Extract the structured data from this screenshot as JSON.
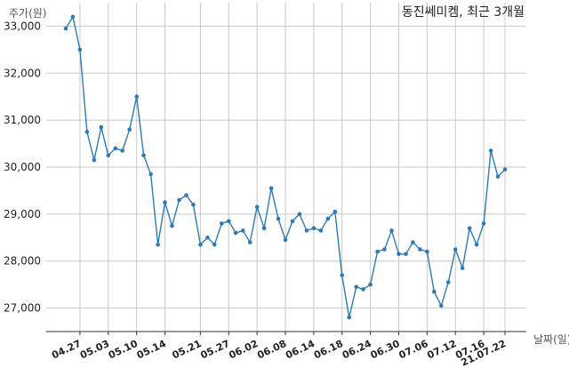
{
  "chart_data": {
    "type": "line",
    "title": "동진쎄미켐, 최근 3개월",
    "ylabel": "주가(원)",
    "xlabel": "날짜(일)",
    "ylim": [
      26500,
      33500
    ],
    "yticks": [
      27000,
      28000,
      29000,
      30000,
      31000,
      32000,
      33000
    ],
    "xtick_labels": [
      "04.27",
      "05.03",
      "05.10",
      "05.14",
      "05.21",
      "05.27",
      "06.02",
      "06.08",
      "06.14",
      "06.18",
      "06.24",
      "06.30",
      "07.06",
      "07.12",
      "07.16",
      "21.07.22"
    ],
    "grid": true,
    "legend": "none",
    "line_color": "#2e7bb4",
    "series": [
      {
        "values": [
          32950,
          33200,
          32500,
          30750,
          30150,
          30850,
          30250,
          30400,
          30350,
          30800,
          31500,
          30250,
          29850,
          28350,
          29250,
          28750,
          29300,
          29400,
          29200,
          28350,
          28500,
          28350,
          28800,
          28850,
          28600,
          28650,
          28400,
          29150,
          28700,
          29550,
          28900,
          28450,
          28850,
          29000,
          28650,
          28700,
          28650,
          28900,
          29050,
          27700,
          26800,
          27450,
          27400,
          27500,
          28200,
          28250,
          28650,
          28150,
          28150,
          28400,
          28250,
          28200,
          27350,
          27050,
          27550,
          28250,
          27850,
          28700,
          28350,
          28800,
          30350,
          29800,
          29950
        ]
      }
    ]
  }
}
